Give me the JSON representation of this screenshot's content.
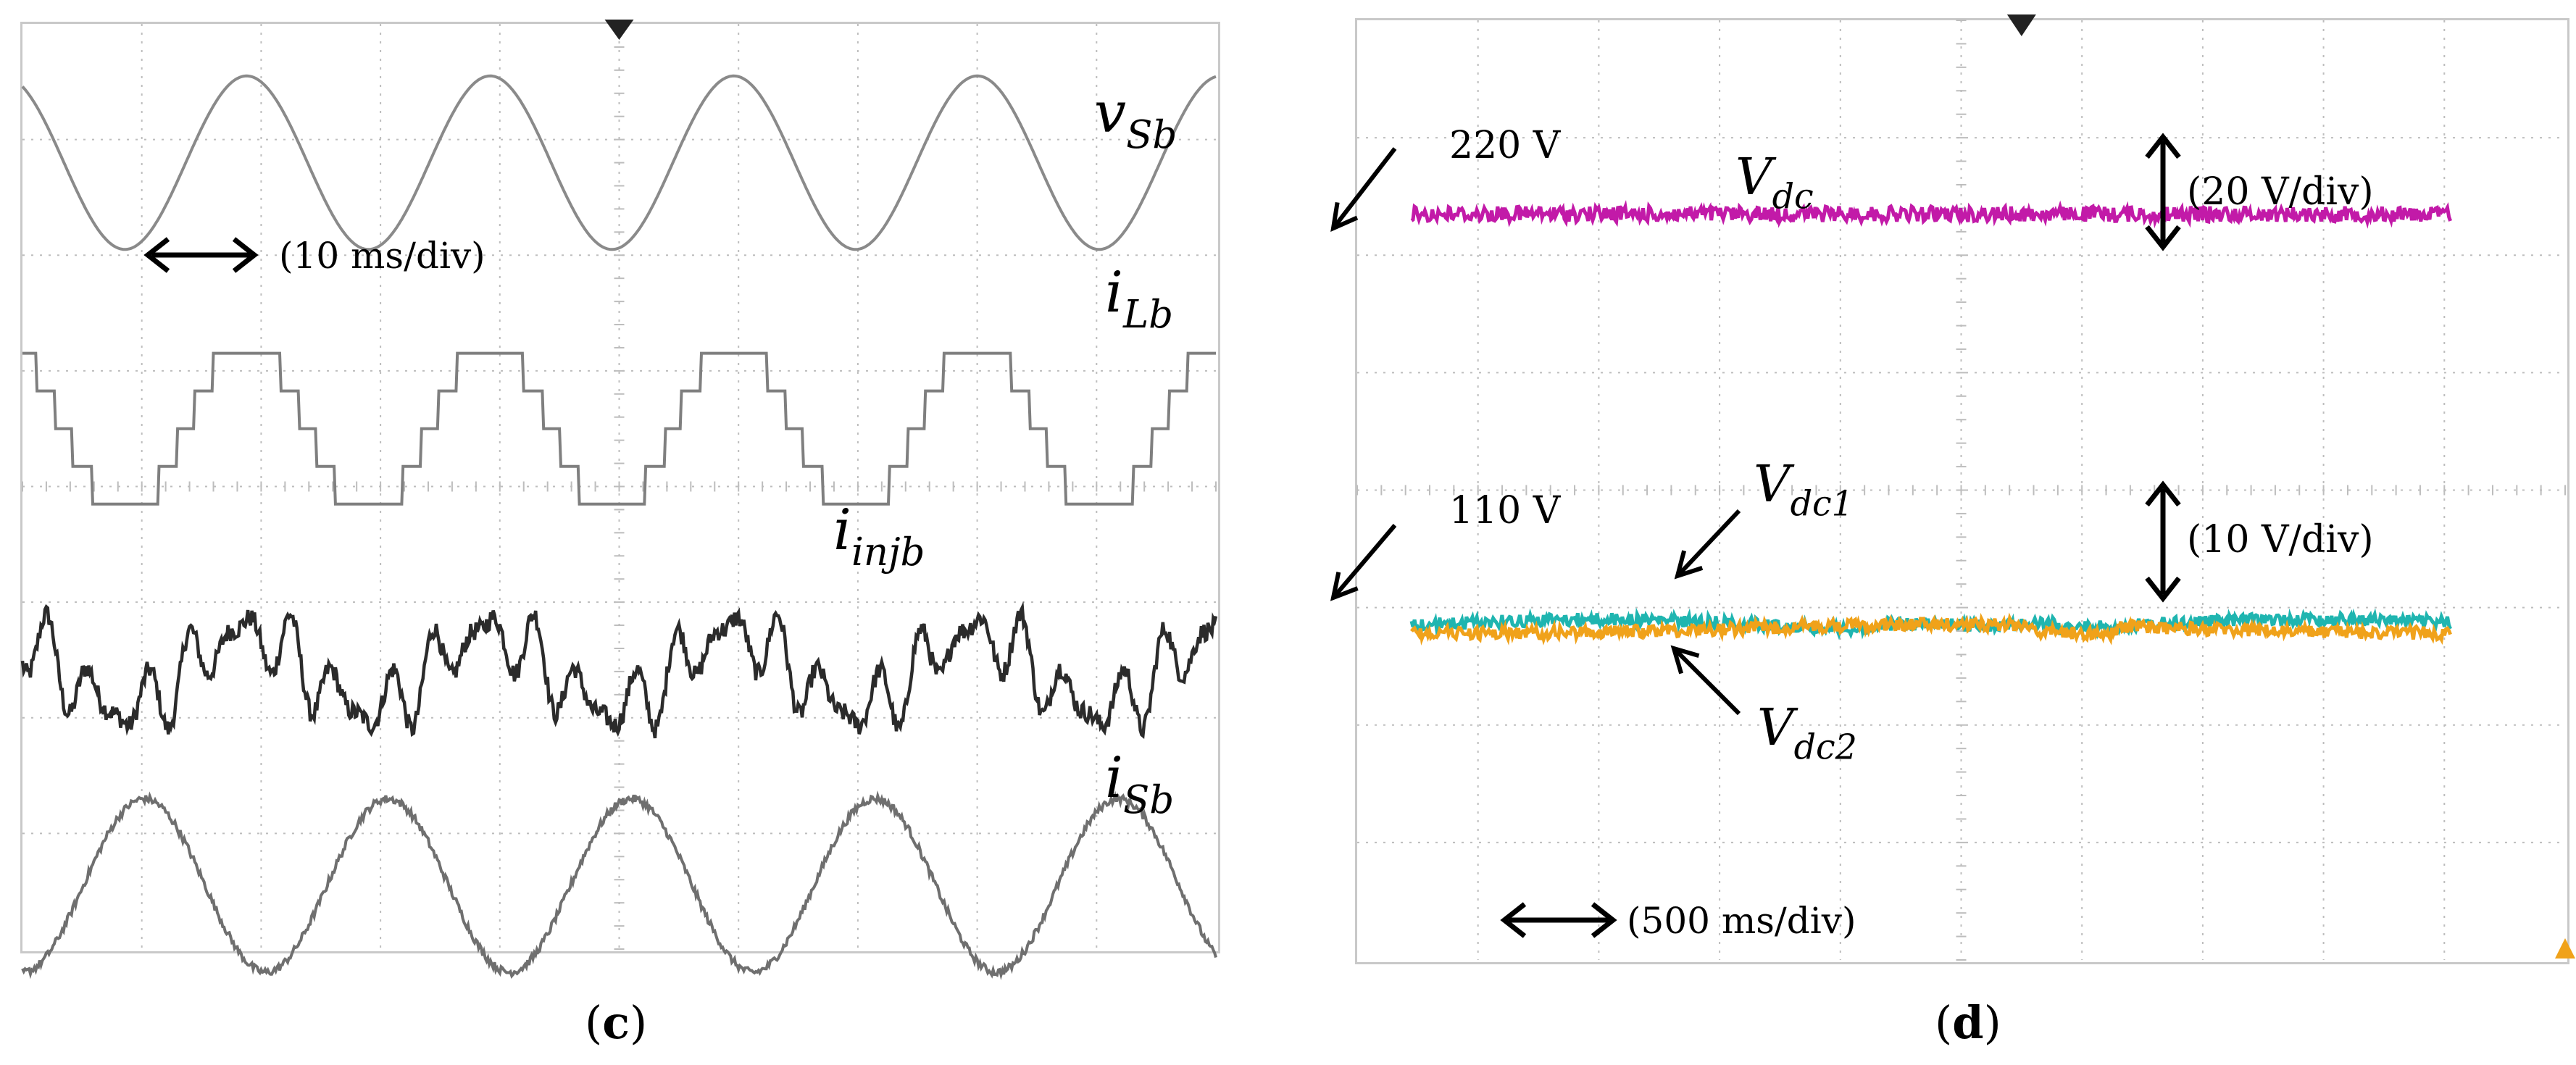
{
  "figure": {
    "left_panel": {
      "caption_letter": "c",
      "time_scale_label": "(10 ms/div)",
      "trace_labels": [
        {
          "main": "v",
          "sub": "Sb"
        },
        {
          "main": "i",
          "sub": "Lb"
        },
        {
          "main": "i",
          "sub": "injb"
        },
        {
          "main": "i",
          "sub": "Sb"
        }
      ]
    },
    "right_panel": {
      "caption_letter": "d",
      "time_scale_label": "(500 ms/div)",
      "level_labels": [
        "220 V",
        "110 V"
      ],
      "scale_labels": [
        "(20 V/div)",
        "(10 V/div)"
      ],
      "trace_labels": [
        {
          "main": "V",
          "sub": "dc"
        },
        {
          "main": "V",
          "sub": "dc1"
        },
        {
          "main": "V",
          "sub": "dc2"
        }
      ]
    }
  },
  "chart_data": [
    {
      "type": "line",
      "title": "",
      "xlabel": "",
      "ylabel": "",
      "grid": true,
      "x_divisions": 10,
      "y_divisions": 8,
      "time_per_div": "10 ms",
      "x": [
        0,
        1,
        2,
        3,
        4,
        5,
        6,
        7,
        8,
        9,
        10
      ],
      "series": [
        {
          "name": "v_Sb",
          "color": "#8a8a8a",
          "shape": "sinusoid",
          "cycles": 4.9,
          "center_div": 6.8,
          "amplitude_div": 0.75,
          "values": [
            0,
            0.65,
            -0.67,
            0.67,
            -0.6,
            0.67,
            -0.67,
            0.67,
            -0.6,
            0.67,
            0
          ]
        },
        {
          "name": "i_Lb",
          "color": "#7f7f7f",
          "shape": "quasi-square",
          "cycles": 4.9,
          "center_div": 4.5,
          "amplitude_div": 0.75,
          "values": [
            0,
            0.75,
            -0.75,
            0.75,
            -0.75,
            0.75,
            -0.75,
            0.75,
            -0.75,
            0.75,
            0
          ]
        },
        {
          "name": "i_injb",
          "color": "#2b2b2b",
          "shape": "harmonic",
          "cycles": 4.9,
          "center_div": 2.4,
          "amplitude_div": 0.6,
          "values": [
            0.3,
            -0.4,
            0.5,
            -0.5,
            0.2,
            -0.6,
            0.5,
            -0.4,
            0.3,
            -0.5,
            0.4
          ]
        },
        {
          "name": "i_Sb",
          "color": "#6f6f6f",
          "shape": "sinusoid",
          "cycles": 4.9,
          "center_div": 0.55,
          "amplitude_div": 0.75,
          "values": [
            -0.5,
            0.75,
            -0.75,
            0.75,
            -0.75,
            0.75,
            -0.75,
            0.75,
            -0.75,
            0.75,
            -0.5
          ]
        }
      ]
    },
    {
      "type": "line",
      "title": "",
      "xlabel": "",
      "ylabel": "",
      "grid": true,
      "x_divisions": 10,
      "y_divisions": 8,
      "time_per_div": "500 ms",
      "x": [
        0,
        1,
        2,
        3,
        4,
        5,
        6,
        7,
        8,
        9
      ],
      "series": [
        {
          "name": "V_dc",
          "color": "#c21aa8",
          "unit": "V",
          "center_div": 6.35,
          "noise_div": 0.06,
          "values": [
            220,
            220,
            220,
            220,
            220,
            220,
            220,
            220,
            220,
            220
          ]
        },
        {
          "name": "V_dc1",
          "color": "#1fb5b0",
          "unit": "V",
          "center_div": 2.85,
          "noise_div": 0.05,
          "values": [
            110,
            110,
            110,
            110,
            110,
            110,
            110,
            110,
            110,
            110
          ]
        },
        {
          "name": "V_dc2",
          "color": "#f0a21a",
          "unit": "V",
          "center_div": 2.82,
          "noise_div": 0.05,
          "values": [
            110,
            110,
            110,
            110,
            110,
            110,
            110,
            110,
            110,
            110
          ]
        }
      ]
    }
  ]
}
